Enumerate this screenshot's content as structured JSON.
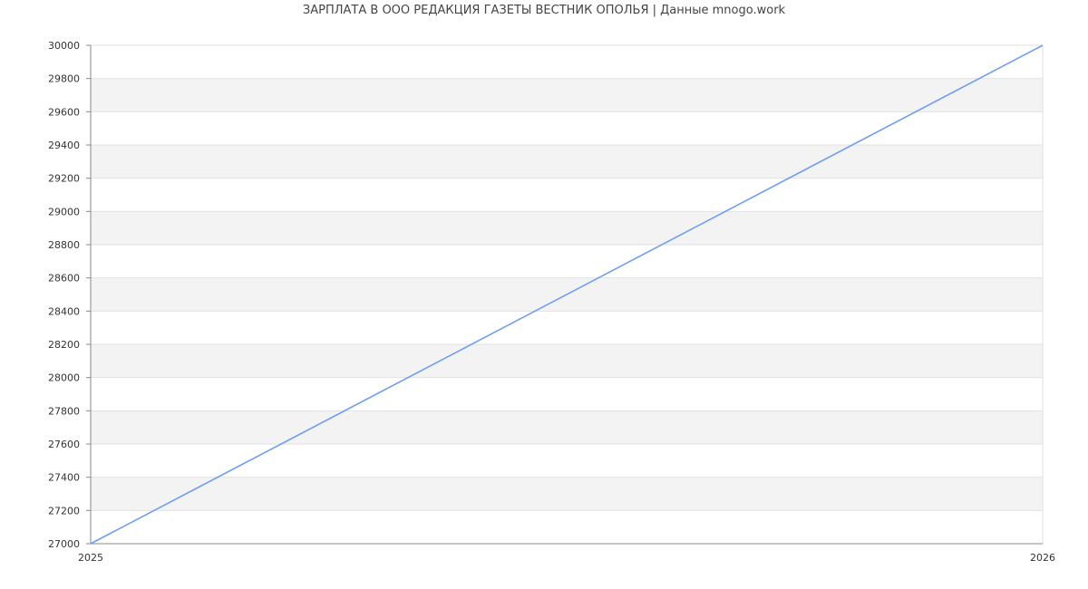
{
  "chart_data": {
    "type": "line",
    "title": "ЗАРПЛАТА В ООО РЕДАКЦИЯ ГАЗЕТЫ ВЕСТНИК ОПОЛЬЯ | Данные mnogo.work",
    "xlabel": "",
    "ylabel": "",
    "x": [
      "2025",
      "2026"
    ],
    "series": [
      {
        "values": [
          27000,
          30000
        ],
        "color": "#6f9ef5"
      }
    ],
    "ylim": [
      27000,
      30000
    ],
    "ystep": 200,
    "grid": true,
    "band_color": "#f3f3f3",
    "legend": "none"
  }
}
